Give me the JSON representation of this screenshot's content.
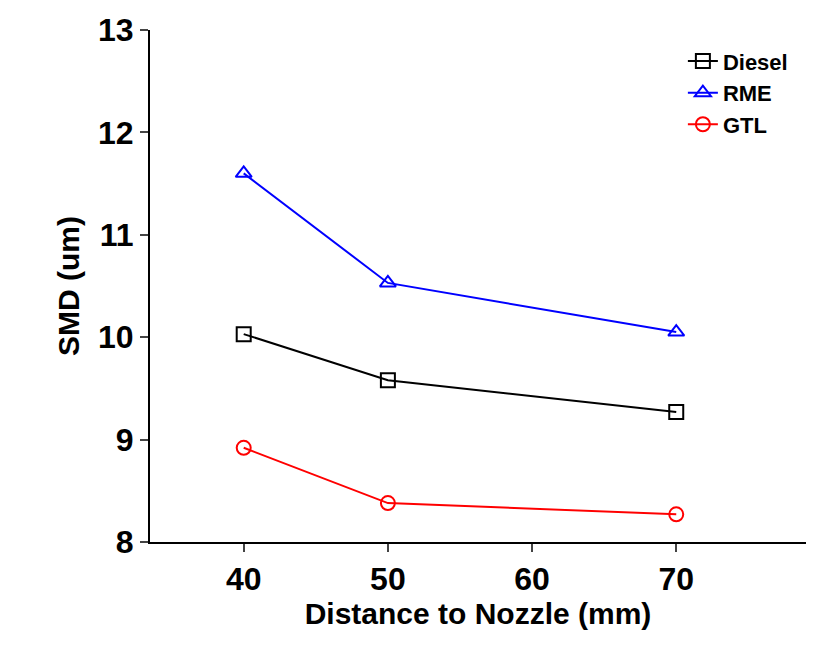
{
  "chart_data": {
    "type": "line",
    "x_label": "Distance to Nozzle (mm)",
    "y_label": "SMD (um)",
    "x": [
      40,
      50,
      70
    ],
    "series": [
      {
        "name": "Diesel",
        "color": "#000000",
        "marker": "square-open",
        "values": [
          10.03,
          9.58,
          9.27
        ]
      },
      {
        "name": "RME",
        "color": "#0000ff",
        "marker": "triangle-up-open",
        "values": [
          11.6,
          10.53,
          10.05
        ]
      },
      {
        "name": "GTL",
        "color": "#ff0000",
        "marker": "circle-open",
        "values": [
          8.92,
          8.38,
          8.27
        ]
      }
    ],
    "xlim": [
      33.5,
      79
    ],
    "xticks": [
      40,
      50,
      60,
      70
    ],
    "ylim": [
      8,
      13
    ],
    "yticks": [
      8,
      9,
      10,
      11,
      12,
      13
    ],
    "grid": false,
    "legend": "top right"
  }
}
